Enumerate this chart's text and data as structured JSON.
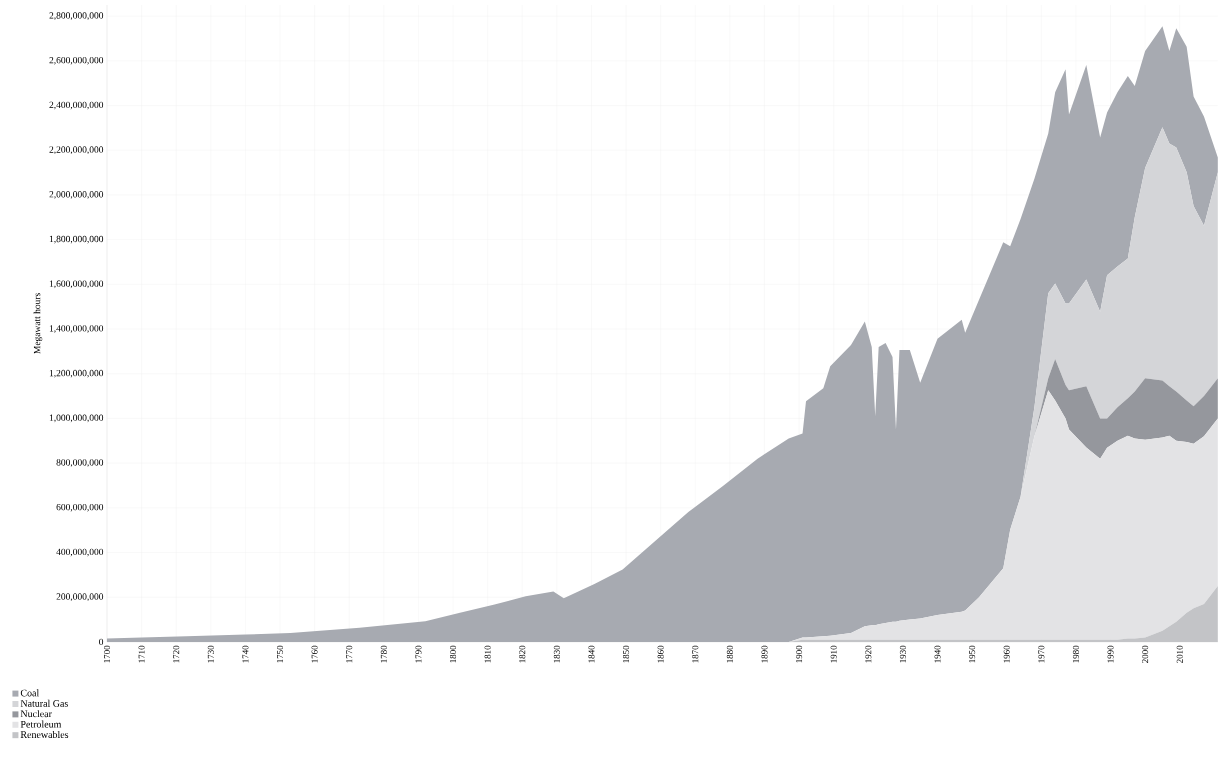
{
  "chart_data": {
    "type": "area",
    "stacked": true,
    "ylabel": "Megawatt hours",
    "x": [
      1700,
      1710,
      1723,
      1740,
      1753,
      1773,
      1792,
      1802,
      1812,
      1821,
      1829,
      1832,
      1841,
      1849,
      1858,
      1868,
      1878,
      1888,
      1897,
      1901,
      1902,
      1907,
      1909,
      1915,
      1919,
      1921,
      1922,
      1923,
      1925,
      1927,
      1928,
      1929,
      1932,
      1935,
      1940,
      1947,
      1948,
      1952,
      1959,
      1961,
      1964,
      1968,
      1972,
      1974,
      1977,
      1978,
      1983,
      1987,
      1989,
      1992,
      1995,
      1997,
      2000,
      2005,
      2007,
      2009,
      2012,
      2014,
      2017,
      2021
    ],
    "series": [
      {
        "name": "Renewables",
        "color": "#c3c4c7",
        "values": [
          0,
          0,
          0,
          0,
          0,
          0,
          0,
          0,
          0,
          0,
          0,
          0,
          0,
          0,
          0,
          0,
          0,
          0,
          0,
          10000000,
          10000000,
          10000000,
          10000000,
          10000000,
          10000000,
          10000000,
          10000000,
          10000000,
          10000000,
          10000000,
          10000000,
          10000000,
          10000000,
          10000000,
          10000000,
          10000000,
          10000000,
          10000000,
          10000000,
          10000000,
          10000000,
          10000000,
          10000000,
          10000000,
          10000000,
          10000000,
          10000000,
          10000000,
          10000000,
          10000000,
          15000000,
          15000000,
          20000000,
          50000000,
          70000000,
          90000000,
          130000000,
          150000000,
          170000000,
          250000000
        ]
      },
      {
        "name": "Petroleum",
        "color": "#e3e3e5",
        "values": [
          0,
          0,
          0,
          0,
          0,
          0,
          0,
          0,
          0,
          0,
          0,
          0,
          0,
          0,
          0,
          0,
          0,
          0,
          0,
          10000000,
          10000000,
          15000000,
          18000000,
          30000000,
          60000000,
          65000000,
          65000000,
          69000000,
          75000000,
          80000000,
          80000000,
          85000000,
          90000000,
          95000000,
          110000000,
          125000000,
          130000000,
          190000000,
          320000000,
          492000000,
          640000000,
          910000000,
          1116000000,
          1070000000,
          990000000,
          940000000,
          860000000,
          810000000,
          859000000,
          890000000,
          908000000,
          895000000,
          885000000,
          865000000,
          853000000,
          810000000,
          765000000,
          737000000,
          750000000,
          750000000
        ]
      },
      {
        "name": "Nuclear",
        "color": "#95979d",
        "values": [
          0,
          0,
          0,
          0,
          0,
          0,
          0,
          0,
          0,
          0,
          0,
          0,
          0,
          0,
          0,
          0,
          0,
          0,
          0,
          0,
          0,
          0,
          0,
          0,
          0,
          0,
          0,
          0,
          0,
          0,
          0,
          0,
          0,
          0,
          0,
          0,
          0,
          0,
          0,
          0,
          0,
          0,
          54000000,
          186000000,
          150000000,
          176000000,
          274000000,
          180000000,
          131000000,
          150000000,
          167000000,
          210000000,
          275000000,
          255000000,
          221000000,
          220000000,
          185000000,
          167000000,
          180000000,
          180000000
        ]
      },
      {
        "name": "Natural Gas",
        "color": "#d4d5d8",
        "values": [
          0,
          0,
          0,
          0,
          0,
          0,
          0,
          0,
          0,
          0,
          0,
          0,
          0,
          0,
          0,
          0,
          0,
          0,
          0,
          0,
          0,
          0,
          0,
          0,
          0,
          0,
          0,
          0,
          0,
          0,
          0,
          0,
          0,
          0,
          0,
          0,
          0,
          0,
          0,
          0,
          0,
          130000000,
          380000000,
          338000000,
          364000000,
          388000000,
          478000000,
          477000000,
          641000000,
          630000000,
          626000000,
          780000000,
          941000000,
          1133000000,
          1086000000,
          1092000000,
          1021000000,
          896000000,
          762000000,
          921000000
        ]
      },
      {
        "name": "Coal",
        "color": "#a7aab1",
        "values": [
          15000000,
          20000000,
          25000000,
          33000000,
          40000000,
          63000000,
          92000000,
          130000000,
          167000000,
          204000000,
          225000000,
          195000000,
          260000000,
          324000000,
          446000000,
          581000000,
          698000000,
          820000000,
          910000000,
          912000000,
          1057000000,
          1110000000,
          1206000000,
          1289000000,
          1364000000,
          1245000000,
          935000000,
          1241000000,
          1253000000,
          1185000000,
          860000000,
          1211000000,
          1206000000,
          1055000000,
          1236000000,
          1306000000,
          1243000000,
          1331000000,
          1458000000,
          1268000000,
          1242000000,
          1022000000,
          715000000,
          855000000,
          1049000000,
          846000000,
          959000000,
          780000000,
          728000000,
          779000000,
          816000000,
          587000000,
          523000000,
          452000000,
          414000000,
          534000000,
          562000000,
          491000000,
          489000000,
          66000000
        ]
      }
    ],
    "xlim": [
      1700,
      2021
    ],
    "xticks": [
      1700,
      1710,
      1720,
      1730,
      1740,
      1750,
      1760,
      1770,
      1780,
      1790,
      1800,
      1810,
      1820,
      1830,
      1840,
      1850,
      1860,
      1870,
      1880,
      1890,
      1900,
      1910,
      1920,
      1930,
      1940,
      1950,
      1960,
      1970,
      1980,
      1990,
      2000,
      2010
    ],
    "ylim": [
      0,
      2850000000
    ],
    "yticks": [
      0,
      {
        "value": 200000000,
        "label": "200,000,000"
      },
      {
        "value": 400000000,
        "label": "400,000,000"
      },
      {
        "value": 600000000,
        "label": "600,000,000"
      },
      {
        "value": 800000000,
        "label": "800,000,000"
      },
      {
        "value": 1000000000,
        "label": "1,000,000,000"
      },
      {
        "value": 1200000000,
        "label": "1,200,000,000"
      },
      {
        "value": 1400000000,
        "label": "1,400,000,000"
      },
      {
        "value": 1600000000,
        "label": "1,600,000,000"
      },
      {
        "value": 1800000000,
        "label": "1,800,000,000"
      },
      {
        "value": 2000000000,
        "label": "2,000,000,000"
      },
      {
        "value": 2200000000,
        "label": "2,200,000,000"
      },
      {
        "value": 2400000000,
        "label": "2,400,000,000"
      },
      {
        "value": 2600000000,
        "label": "2,600,000,000"
      },
      {
        "value": 2800000000,
        "label": "2,800,000,000"
      }
    ],
    "grid": true,
    "legend": "bottom left"
  }
}
